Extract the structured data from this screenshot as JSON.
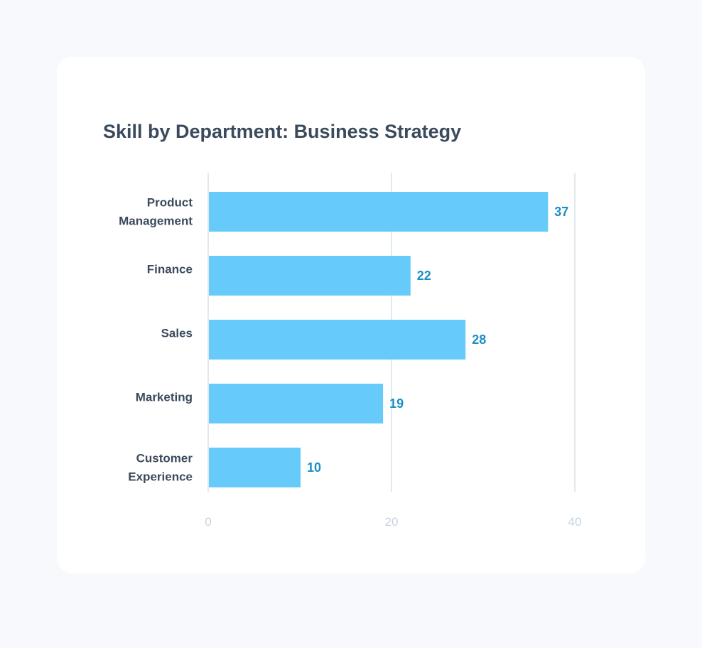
{
  "chart_data": {
    "type": "bar",
    "orientation": "horizontal",
    "title": "Skill by Department: Business Strategy",
    "categories": [
      [
        "Product",
        "Management"
      ],
      [
        "Finance"
      ],
      [
        "Sales"
      ],
      [
        "Marketing"
      ],
      [
        "Customer",
        "Experience"
      ]
    ],
    "values": [
      37,
      22,
      28,
      19,
      10
    ],
    "xlim": [
      0,
      40
    ],
    "xticks": [
      "0",
      "20",
      "40"
    ],
    "grid": true,
    "legend": "none",
    "colors": {
      "bar": "#66cbf8",
      "value_label": "#1a8fc4",
      "grid": "#e3e8ee",
      "axis_text": "#c5d3e0",
      "text": "#3b4a5c"
    }
  }
}
